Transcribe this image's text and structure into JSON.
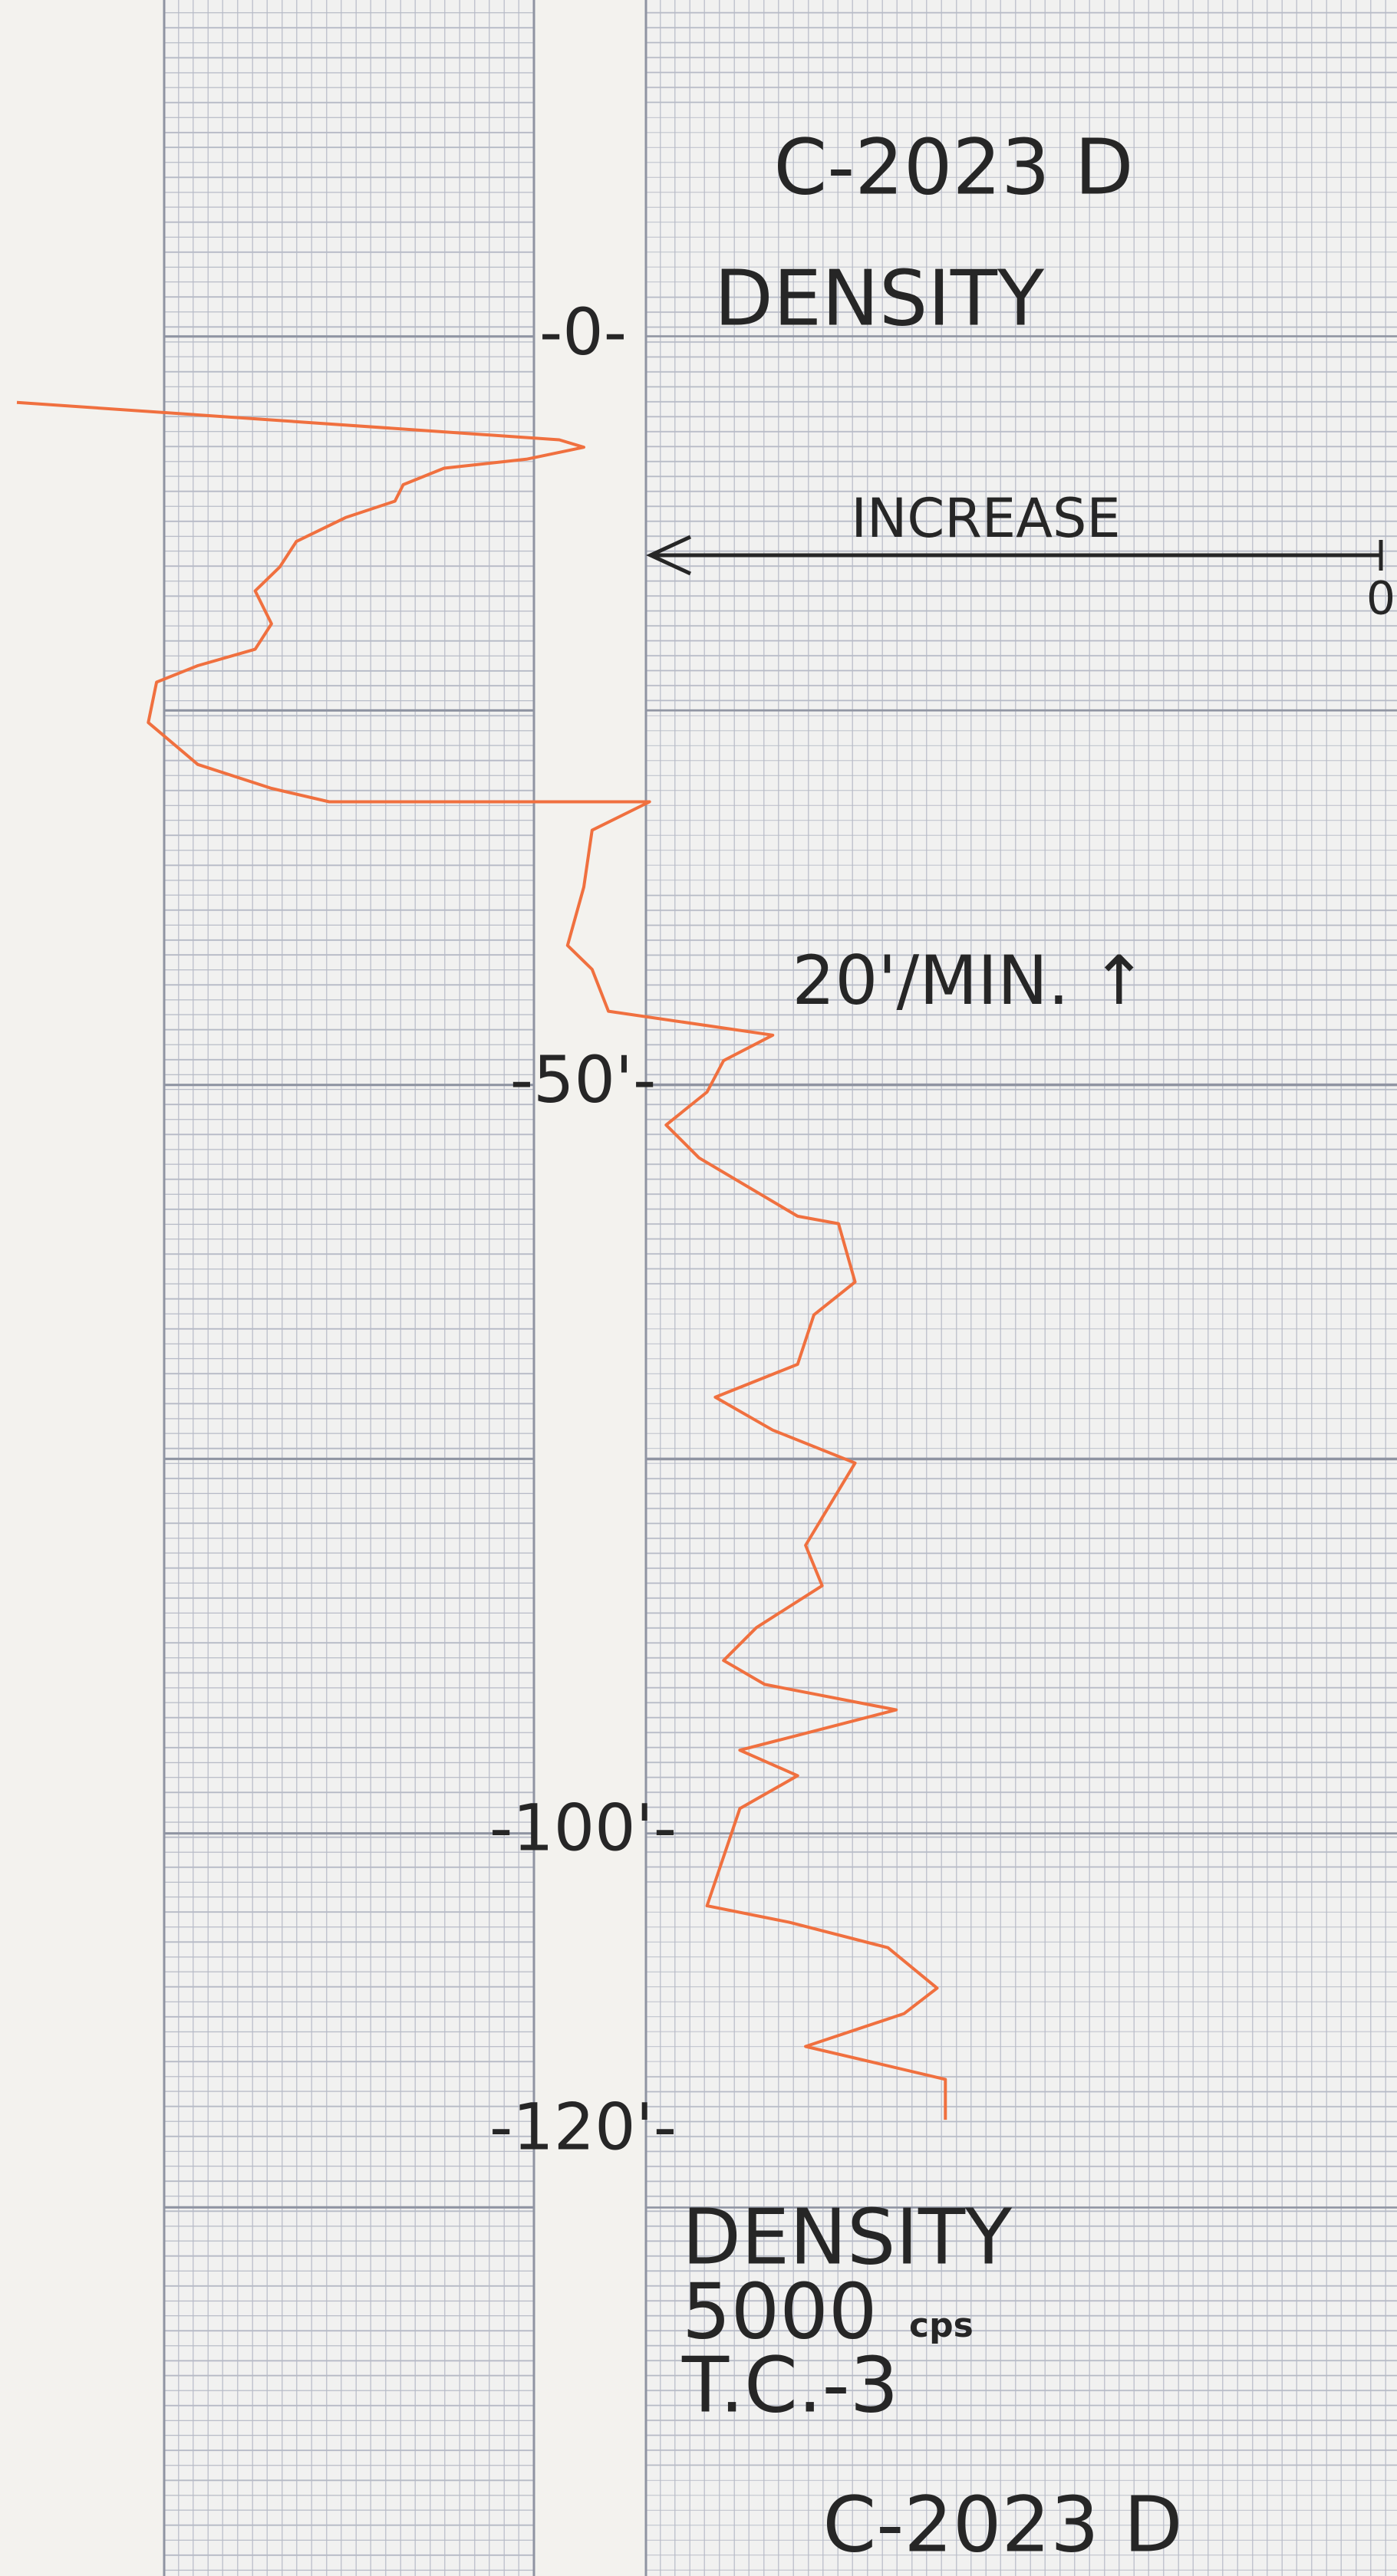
{
  "chart_data": {
    "type": "line",
    "title": "C-2023 D",
    "subtitle": "DENSITY",
    "arrow_label": "INCREASE",
    "speed_label": "20'/MIN. ↑",
    "scale_label": [
      "DENSITY",
      "5000",
      "cps",
      "T.C.-3"
    ],
    "footer": "C-2023 D",
    "x": [
      4.4,
      6.9,
      7.4,
      8.2,
      8.8,
      9.9,
      11.0,
      12.1,
      13.7,
      15.4,
      17.0,
      19.2,
      20.9,
      22.0,
      23.1,
      25.8,
      28.6,
      30.2,
      31.1,
      31.1,
      33.0,
      36.8,
      40.7,
      42.3,
      45.1,
      46.7,
      48.4,
      50.5,
      52.7,
      54.9,
      58.8,
      59.3,
      63.2,
      65.4,
      68.7,
      70.9,
      73.1,
      75.3,
      80.8,
      83.5,
      86.3,
      88.5,
      90.1,
      91.8,
      94.5,
      96.2,
      98.4,
      104.9,
      106.0,
      107.7,
      110.4,
      112.1,
      114.3,
      116.5,
      119.2
    ],
    "values": [
      4939,
      2975,
      2886,
      3094,
      3392,
      3540,
      3570,
      3749,
      3927,
      3987,
      4076,
      4017,
      4076,
      4284,
      4433,
      4463,
      4284,
      4017,
      3808,
      2648,
      2856,
      2886,
      2945,
      2856,
      2797,
      2202,
      2380,
      2440,
      2588,
      2469,
      2112,
      1964,
      1904,
      2053,
      2112,
      2410,
      2202,
      1904,
      2083,
      2023,
      2261,
      2380,
      2231,
      1755,
      2321,
      2112,
      2321,
      2440,
      2142,
      1785,
      1607,
      1726,
      2083,
      1577,
      1577
    ],
    "color": "#f0703f",
    "xlim": [
      -22.5,
      149.7
    ],
    "xticks": [
      {
        "value": 0,
        "label": "-0-"
      },
      {
        "value": 50,
        "label": "-50'-"
      },
      {
        "value": 100,
        "label": "-100'-"
      },
      {
        "value": 120,
        "label": "-120'-"
      }
    ],
    "ylim": [
      5000,
      0
    ],
    "yticks": [
      0
    ]
  }
}
